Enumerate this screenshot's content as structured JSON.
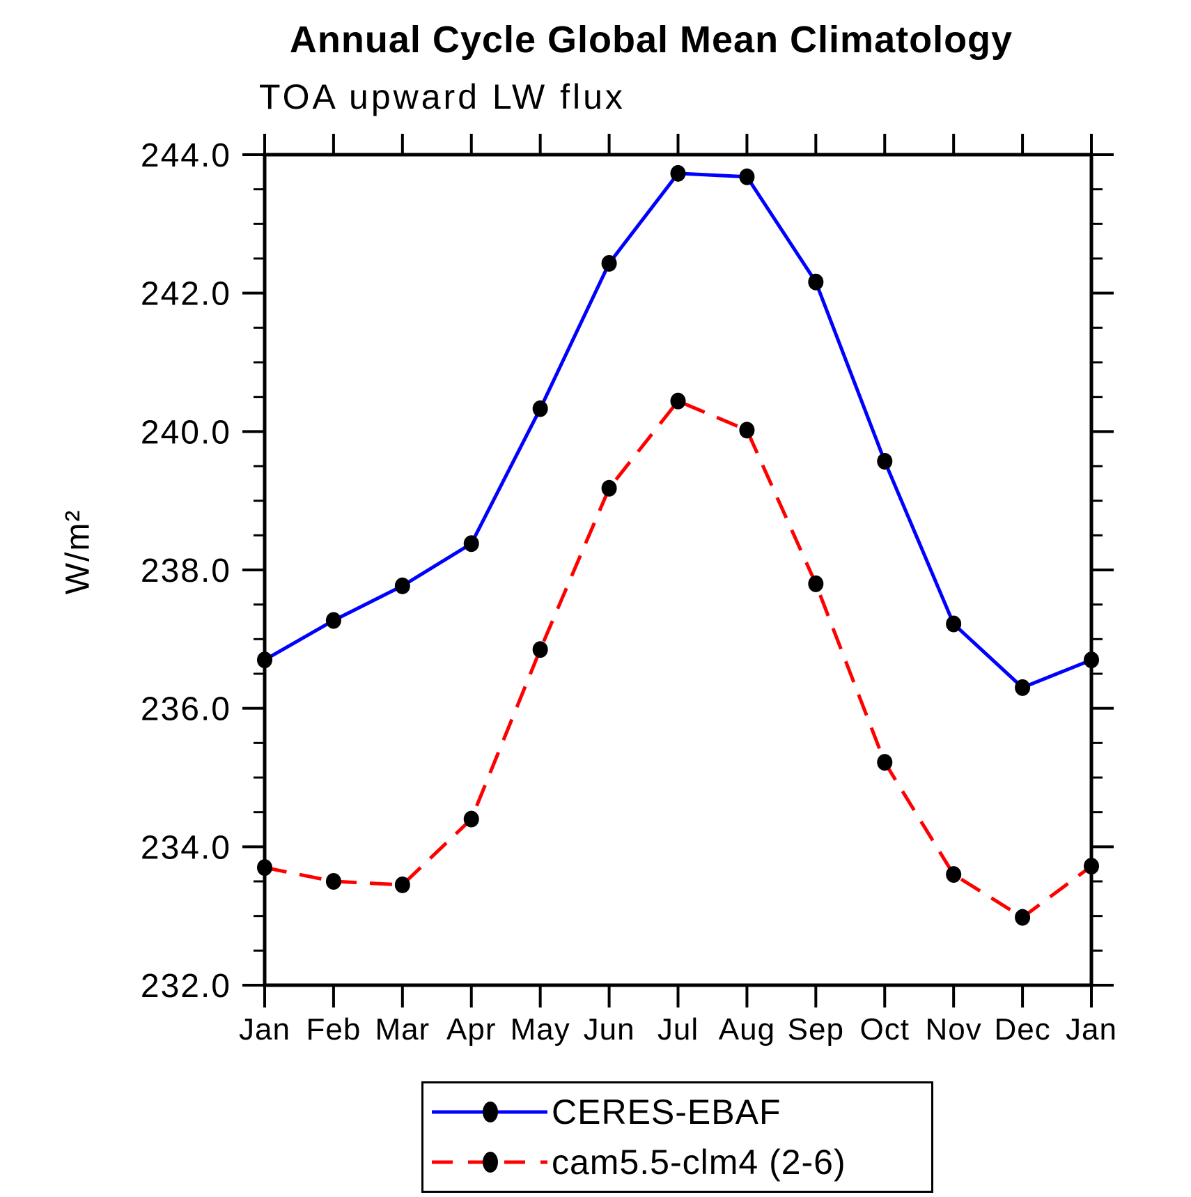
{
  "colors": {
    "background": "#ffffff",
    "axis": "#000000",
    "marker": "#000000",
    "series_blue": "#0000ff",
    "series_red": "#ff0000"
  },
  "chart_data": {
    "type": "line",
    "title": "Annual Cycle Global Mean Climatology",
    "subtitle": "TOA upward LW flux",
    "ylabel": "W/m²",
    "xlabel": "",
    "categories": [
      "Jan",
      "Feb",
      "Mar",
      "Apr",
      "May",
      "Jun",
      "Jul",
      "Aug",
      "Sep",
      "Oct",
      "Nov",
      "Dec",
      "Jan"
    ],
    "ylim": [
      232.0,
      244.0
    ],
    "ytick_major_step": 2.0,
    "ytick_minor_step": 0.5,
    "ytick_labels": [
      "244.0",
      "242.0",
      "240.0",
      "238.0",
      "236.0",
      "234.0",
      "232.0"
    ],
    "grid": false,
    "legend_position": "bottom-center",
    "series": [
      {
        "name": "CERES-EBAF",
        "color": "#0000ff",
        "line_style": "solid",
        "marker": "filled-circle",
        "marker_color": "#000000",
        "values": [
          236.7,
          237.27,
          237.77,
          238.38,
          240.33,
          242.43,
          243.73,
          243.68,
          242.16,
          239.57,
          237.22,
          236.3,
          236.7
        ]
      },
      {
        "name": "cam5.5-clm4 (2-6)",
        "color": "#ff0000",
        "line_style": "dashed",
        "marker": "filled-circle",
        "marker_color": "#000000",
        "values": [
          233.7,
          233.5,
          233.45,
          234.4,
          236.85,
          239.18,
          240.44,
          240.02,
          237.8,
          235.22,
          233.6,
          232.98,
          233.72
        ]
      }
    ]
  }
}
